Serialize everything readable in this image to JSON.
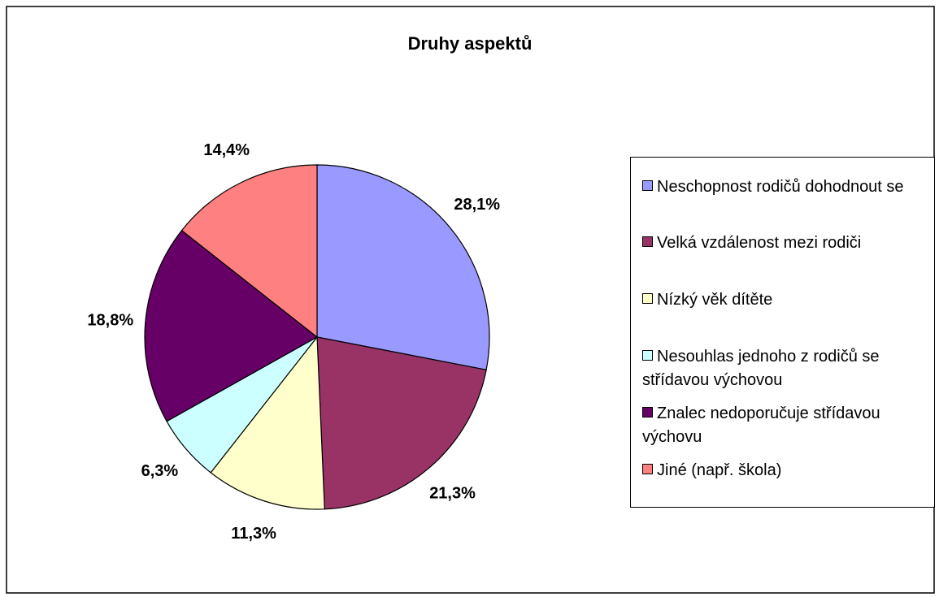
{
  "chart_data": {
    "type": "pie",
    "title": "Druhy aspektů",
    "categories": [
      "Neschopnost rodičů dohodnout se",
      "Velká vzdálenost mezi rodiči",
      "Nízký věk dítěte",
      "Nesouhlas jednoho z rodičů se střídavou výchovou",
      "Znalec nedoporučuje střídavou výchovu",
      "Jiné (např. škola)"
    ],
    "values": [
      28.1,
      21.3,
      11.3,
      6.3,
      18.8,
      14.4
    ],
    "value_labels": [
      "28,1%",
      "21,3%",
      "11,3%",
      "6,3%",
      "18,8%",
      "14,4%"
    ],
    "colors": [
      "#9999ff",
      "#993366",
      "#ffffcc",
      "#ccffff",
      "#660066",
      "#ff8080"
    ],
    "legend": "right"
  }
}
